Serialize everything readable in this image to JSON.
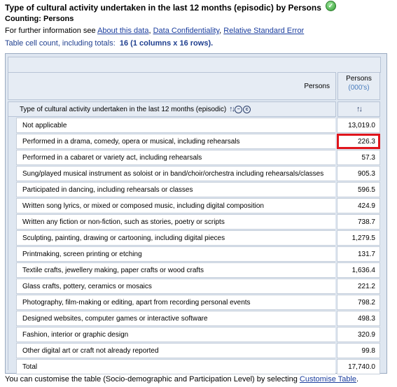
{
  "header": {
    "title": "Type of cultural activity undertaken in the last 12 months (episodic) by Persons",
    "counting": "Counting: Persons",
    "info_prefix": "For further information see ",
    "links": [
      "About this data",
      "Data Confidentiality",
      "Relative Standard Error"
    ],
    "separator": ", ",
    "cellcount_prefix": "Table cell count, including totals:",
    "cellcount_value": "16 (1 columns x 16 rows)."
  },
  "table": {
    "column_group_label": "Persons",
    "column_header": "Persons",
    "column_unit": "(000's)",
    "row_header": "Type of cultural activity undertaken in the last 12 months (episodic)",
    "highlight_color": "#e0151c",
    "rows": [
      {
        "label": "Not applicable",
        "value": "13,019.0"
      },
      {
        "label": "Performed in a drama, comedy, opera or musical, including rehearsals",
        "value": "226.3"
      },
      {
        "label": "Performed in a cabaret or variety act, including rehearsals",
        "value": "57.3"
      },
      {
        "label": "Sung/played musical instrument as soloist or in band/choir/orchestra including rehearsals/classes",
        "value": "905.3"
      },
      {
        "label": "Participated in dancing, including rehearsals or classes",
        "value": "596.5"
      },
      {
        "label": "Written song lyrics, or mixed or composed music, including digital composition",
        "value": "424.9"
      },
      {
        "label": "Written any fiction or non-fiction, such as stories, poetry or scripts",
        "value": "738.7"
      },
      {
        "label": "Sculpting, painting, drawing or cartooning, including digital pieces",
        "value": "1,279.5"
      },
      {
        "label": "Printmaking, screen printing or etching",
        "value": "131.7"
      },
      {
        "label": "Textile crafts, jewellery making, paper crafts or wood crafts",
        "value": "1,636.4"
      },
      {
        "label": "Glass crafts, pottery, ceramics or mosaics",
        "value": "221.2"
      },
      {
        "label": "Photography, film-making or editing, apart from recording personal events",
        "value": "798.2"
      },
      {
        "label": "Designed websites, computer games or interactive software",
        "value": "498.3"
      },
      {
        "label": "Fashion, interior or graphic design",
        "value": "320.9"
      },
      {
        "label": "Other digital art or craft not already reported",
        "value": "99.8"
      },
      {
        "label": "Total",
        "value": "17,740.0"
      }
    ]
  },
  "footer": {
    "text": "You can customise the table (Socio-demographic and Participation Level) by selecting ",
    "link": "Customise Table",
    "end": "."
  }
}
